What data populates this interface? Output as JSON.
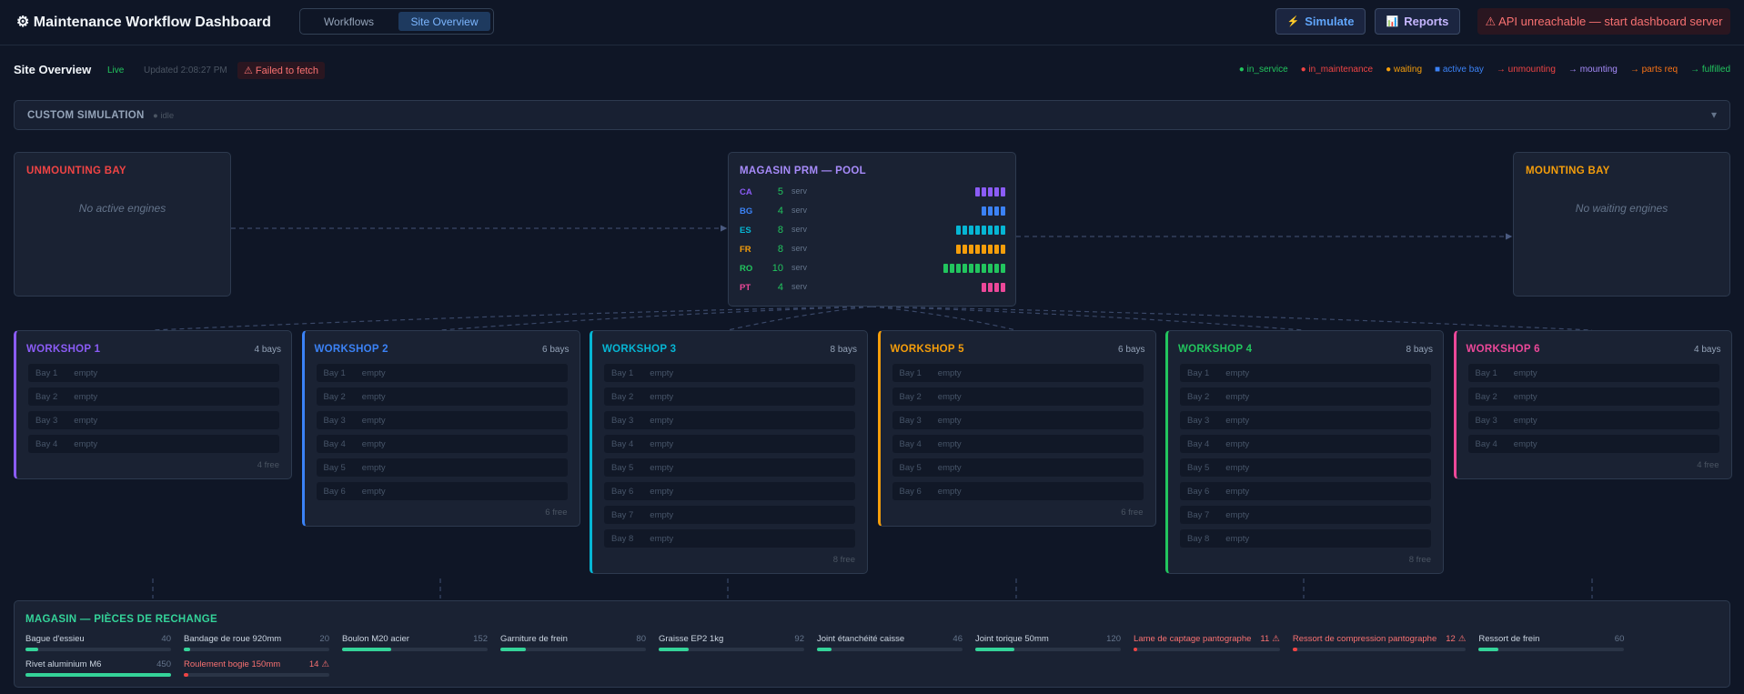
{
  "header": {
    "title": "⚙ Maintenance Workflow Dashboard",
    "tabs": [
      {
        "label": "Workflows",
        "active": false
      },
      {
        "label": "Site Overview",
        "active": true
      }
    ],
    "buttons": [
      {
        "icon": "⚡",
        "label": "Simulate"
      },
      {
        "icon": "📊",
        "label": "Reports"
      }
    ],
    "error": "⚠ API unreachable — start dashboard server"
  },
  "status_bar": {
    "title": "Site Overview",
    "live": "Live",
    "updated": "Updated 2:08:27 PM",
    "fetch_error": "⚠ Failed to fetch",
    "legend": [
      {
        "text": "● in_service",
        "color": "#22c55e"
      },
      {
        "text": "● in_maintenance",
        "color": "#ef4444"
      },
      {
        "text": "● waiting",
        "color": "#f59e0b"
      },
      {
        "text": "■ active bay",
        "color": "#3b82f6"
      },
      {
        "text": "→ unmounting",
        "color": "#ef4444"
      },
      {
        "text": "→ mounting",
        "color": "#a78bfa"
      },
      {
        "text": "→ parts req",
        "color": "#f97316"
      },
      {
        "text": "→ fulfilled",
        "color": "#22c55e"
      }
    ]
  },
  "simulation": {
    "title": "CUSTOM SIMULATION",
    "status": "● idle",
    "toggle": "▾"
  },
  "unmounting_bay": {
    "title": "UNMOUNTING BAY",
    "message": "No active engines",
    "color": "#ef4444"
  },
  "mounting_bay": {
    "title": "MOUNTING BAY",
    "message": "No waiting engines",
    "color": "#f59e0b"
  },
  "pool": {
    "title": "MAGASIN PRM — POOL",
    "color": "#a78bfa",
    "rows": [
      {
        "code": "CA",
        "count": 5,
        "unit": "serv",
        "color": "#8b5cf6"
      },
      {
        "code": "BG",
        "count": 4,
        "unit": "serv",
        "color": "#3b82f6"
      },
      {
        "code": "ES",
        "count": 8,
        "unit": "serv",
        "color": "#06b6d4"
      },
      {
        "code": "FR",
        "count": 8,
        "unit": "serv",
        "color": "#f59e0b"
      },
      {
        "code": "RO",
        "count": 10,
        "unit": "serv",
        "color": "#22c55e"
      },
      {
        "code": "PT",
        "count": 4,
        "unit": "serv",
        "color": "#ec4899"
      }
    ]
  },
  "workshops": [
    {
      "name": "WORKSHOP 1",
      "bays_label": "4 bays",
      "free_label": "4 free",
      "color": "#8b5cf6",
      "bays": [
        {
          "label": "Bay 1",
          "status": "empty"
        },
        {
          "label": "Bay 2",
          "status": "empty"
        },
        {
          "label": "Bay 3",
          "status": "empty"
        },
        {
          "label": "Bay 4",
          "status": "empty"
        }
      ]
    },
    {
      "name": "WORKSHOP 2",
      "bays_label": "6 bays",
      "free_label": "6 free",
      "color": "#3b82f6",
      "bays": [
        {
          "label": "Bay 1",
          "status": "empty"
        },
        {
          "label": "Bay 2",
          "status": "empty"
        },
        {
          "label": "Bay 3",
          "status": "empty"
        },
        {
          "label": "Bay 4",
          "status": "empty"
        },
        {
          "label": "Bay 5",
          "status": "empty"
        },
        {
          "label": "Bay 6",
          "status": "empty"
        }
      ]
    },
    {
      "name": "WORKSHOP 3",
      "bays_label": "8 bays",
      "free_label": "8 free",
      "color": "#06b6d4",
      "bays": [
        {
          "label": "Bay 1",
          "status": "empty"
        },
        {
          "label": "Bay 2",
          "status": "empty"
        },
        {
          "label": "Bay 3",
          "status": "empty"
        },
        {
          "label": "Bay 4",
          "status": "empty"
        },
        {
          "label": "Bay 5",
          "status": "empty"
        },
        {
          "label": "Bay 6",
          "status": "empty"
        },
        {
          "label": "Bay 7",
          "status": "empty"
        },
        {
          "label": "Bay 8",
          "status": "empty"
        }
      ]
    },
    {
      "name": "WORKSHOP 5",
      "bays_label": "6 bays",
      "free_label": "6 free",
      "color": "#f59e0b",
      "bays": [
        {
          "label": "Bay 1",
          "status": "empty"
        },
        {
          "label": "Bay 2",
          "status": "empty"
        },
        {
          "label": "Bay 3",
          "status": "empty"
        },
        {
          "label": "Bay 4",
          "status": "empty"
        },
        {
          "label": "Bay 5",
          "status": "empty"
        },
        {
          "label": "Bay 6",
          "status": "empty"
        }
      ]
    },
    {
      "name": "WORKSHOP 4",
      "bays_label": "8 bays",
      "free_label": "8 free",
      "color": "#22c55e",
      "bays": [
        {
          "label": "Bay 1",
          "status": "empty"
        },
        {
          "label": "Bay 2",
          "status": "empty"
        },
        {
          "label": "Bay 3",
          "status": "empty"
        },
        {
          "label": "Bay 4",
          "status": "empty"
        },
        {
          "label": "Bay 5",
          "status": "empty"
        },
        {
          "label": "Bay 6",
          "status": "empty"
        },
        {
          "label": "Bay 7",
          "status": "empty"
        },
        {
          "label": "Bay 8",
          "status": "empty"
        }
      ]
    },
    {
      "name": "WORKSHOP 6",
      "bays_label": "4 bays",
      "free_label": "4 free",
      "color": "#ec4899",
      "bays": [
        {
          "label": "Bay 1",
          "status": "empty"
        },
        {
          "label": "Bay 2",
          "status": "empty"
        },
        {
          "label": "Bay 3",
          "status": "empty"
        },
        {
          "label": "Bay 4",
          "status": "empty"
        }
      ]
    }
  ],
  "parts": {
    "title": "MAGASIN — PIÈCES DE RECHANGE",
    "color": "#34d399",
    "warning_icon": "⚠",
    "items": [
      {
        "name": "Bague d'essieu",
        "qty": 40,
        "low": false
      },
      {
        "name": "Bandage de roue 920mm",
        "qty": 20,
        "low": false
      },
      {
        "name": "Boulon M20 acier",
        "qty": 152,
        "low": false
      },
      {
        "name": "Garniture de frein",
        "qty": 80,
        "low": false
      },
      {
        "name": "Graisse EP2 1kg",
        "qty": 92,
        "low": false
      },
      {
        "name": "Joint étanchéité caisse",
        "qty": 46,
        "low": false
      },
      {
        "name": "Joint torique 50mm",
        "qty": 120,
        "low": false
      },
      {
        "name": "Lame de captage pantographe",
        "qty": 11,
        "low": true
      },
      {
        "name": "Ressort de compression pantographe",
        "qty": 12,
        "low": true
      },
      {
        "name": "Ressort de frein",
        "qty": 60,
        "low": false
      },
      {
        "name": "Rivet aluminium M6",
        "qty": 450,
        "low": false
      },
      {
        "name": "Roulement bogie 150mm",
        "qty": 14,
        "low": true
      }
    ]
  }
}
